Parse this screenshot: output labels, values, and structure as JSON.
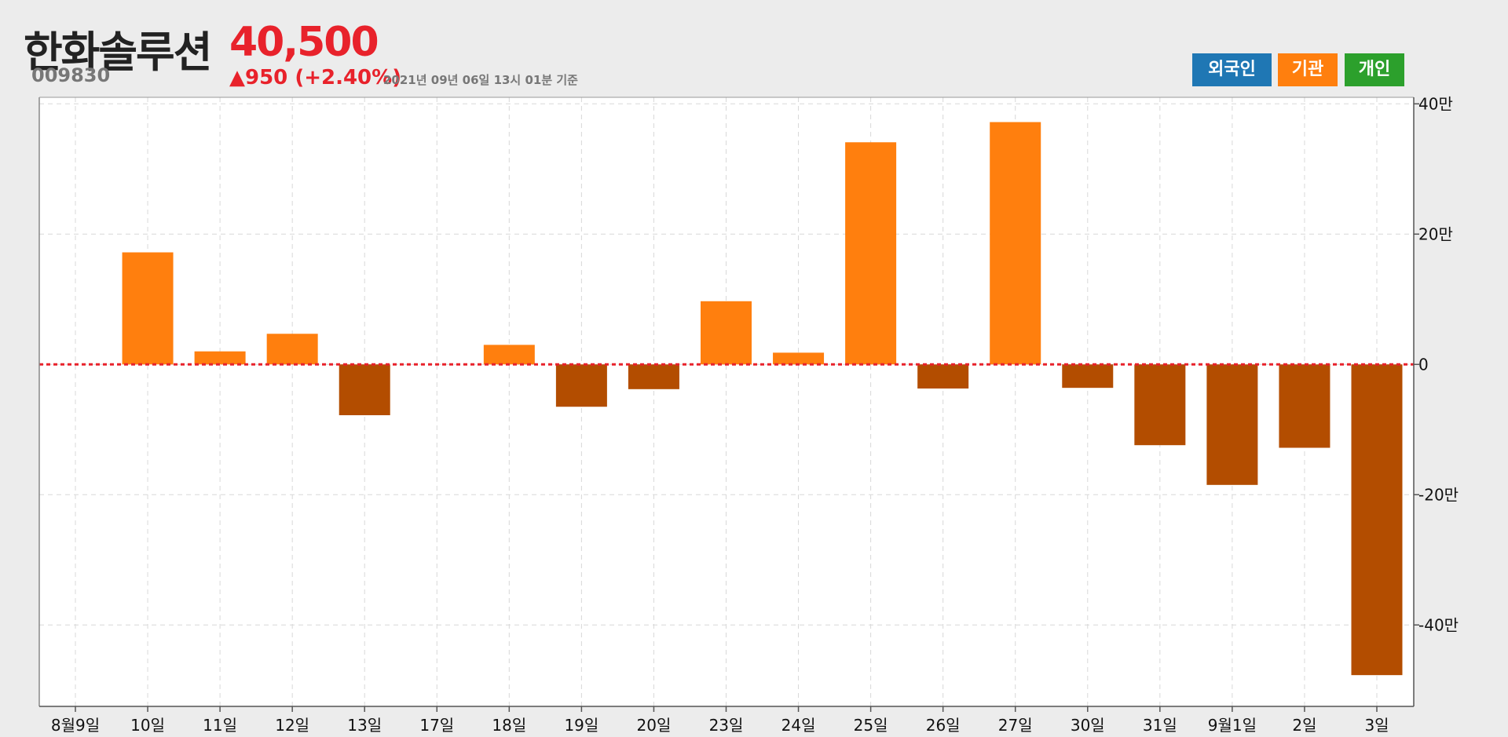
{
  "header": {
    "stock_name": "한화솔루션",
    "stock_code": "009830",
    "price": "40,500",
    "change": "▲950 (+2.40%)",
    "as_of": "2021년 09년 06일 13시 01분 기준"
  },
  "legend": [
    {
      "label": "외국인",
      "color": "#1f77b4"
    },
    {
      "label": "기관",
      "color": "#ff7f0e"
    },
    {
      "label": "개인",
      "color": "#2ca02c"
    }
  ],
  "colors": {
    "positive": "#ff7f0e",
    "negative": "#b34d00",
    "zero_line": "#e8222b"
  },
  "chart_data": {
    "type": "bar",
    "series": [
      {
        "name": "기관",
        "values": [
          0,
          172000,
          20000,
          47000,
          -78000,
          0,
          30000,
          -65000,
          -38000,
          97000,
          18000,
          341000,
          -37000,
          372000,
          -36000,
          -124000,
          -185000,
          -128000,
          -477000
        ]
      }
    ],
    "categories": [
      "8월9일",
      "10일",
      "11일",
      "12일",
      "13일",
      "17일",
      "18일",
      "19일",
      "20일",
      "23일",
      "24일",
      "25일",
      "26일",
      "27일",
      "30일",
      "31일",
      "9월1일",
      "2일",
      "3일"
    ],
    "y_ticks": [
      {
        "value": 400000,
        "label": "40만"
      },
      {
        "value": 200000,
        "label": "20만"
      },
      {
        "value": 0,
        "label": "0"
      },
      {
        "value": -200000,
        "label": "-20만"
      },
      {
        "value": -400000,
        "label": "-40만"
      }
    ],
    "ylim": [
      -525000,
      410000
    ],
    "grid": true
  }
}
